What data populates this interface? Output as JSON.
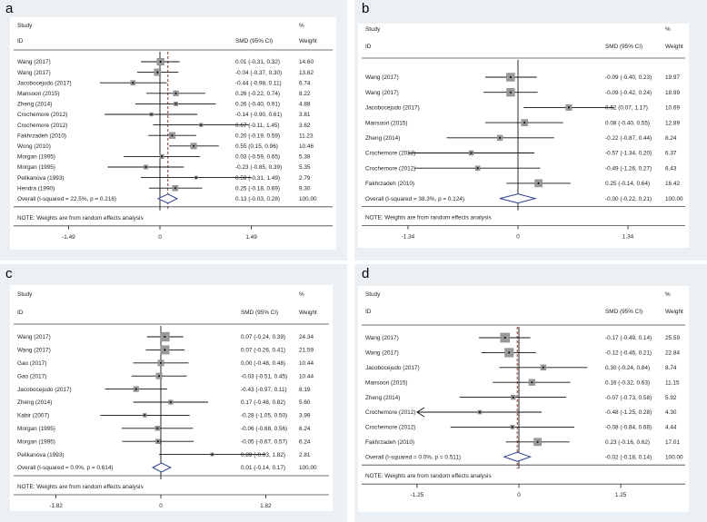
{
  "colors": {
    "frame": "#eaf0f4",
    "box": "#9a9a9a",
    "diamond": "#2a3f8f",
    "line": "#111111",
    "refline": "#8b1a1a"
  },
  "headers": {
    "study": "Study",
    "id": "ID",
    "smd": "SMD (95% CI)",
    "pct": "%",
    "weight": "Weight"
  },
  "note": "NOTE: Weights are from random effects analysis",
  "chart_data": [
    {
      "panel": "a",
      "type": "forest",
      "ticks": [
        -1.49,
        0,
        1.49
      ],
      "tick_labels": [
        "-1.49",
        "0",
        "1.49"
      ],
      "xlim": [
        -2.0,
        2.0
      ],
      "show_overall_dashed_line": true,
      "studies": [
        {
          "id": "Wang (2017)",
          "smd": 0.01,
          "lo": -0.31,
          "hi": 0.32,
          "ci": "0.01 (-0.31, 0.32)",
          "weight": "14.60"
        },
        {
          "id": "Wang (2017)",
          "smd": -0.04,
          "lo": -0.37,
          "hi": 0.3,
          "ci": "-0.04 (-0.37, 0.30)",
          "weight": "13.62"
        },
        {
          "id": "Jacobocejudo (2017)",
          "smd": -0.44,
          "lo": -0.98,
          "hi": 0.11,
          "ci": "-0.44 (-0.98, 0.11)",
          "weight": "6.74"
        },
        {
          "id": "Mansoori (2015)",
          "smd": 0.26,
          "lo": -0.22,
          "hi": 0.74,
          "ci": "0.26 (-0.22, 0.74)",
          "weight": "8.22"
        },
        {
          "id": "Zheng (2014)",
          "smd": 0.26,
          "lo": -0.4,
          "hi": 0.91,
          "ci": "0.26 (-0.40, 0.91)",
          "weight": "4.88"
        },
        {
          "id": "Crochemore (2012)",
          "smd": -0.14,
          "lo": -0.9,
          "hi": 0.61,
          "ci": "-0.14 (-0.90, 0.61)",
          "weight": "3.81"
        },
        {
          "id": "Crochemore (2012)",
          "smd": 0.67,
          "lo": -0.11,
          "hi": 1.45,
          "ci": "0.67 (-0.11, 1.45)",
          "weight": "3.62"
        },
        {
          "id": "Fakhrzadeh (2010)",
          "smd": 0.2,
          "lo": -0.19,
          "hi": 0.59,
          "ci": "0.20 (-0.19, 0.59)",
          "weight": "11.23"
        },
        {
          "id": "Wong (2010)",
          "smd": 0.55,
          "lo": 0.15,
          "hi": 0.96,
          "ci": "0.55 (0.15, 0.96)",
          "weight": "10.46"
        },
        {
          "id": "Morgan (1995)",
          "smd": 0.03,
          "lo": -0.59,
          "hi": 0.65,
          "ci": "0.03 (-0.59, 0.65)",
          "weight": "5.38"
        },
        {
          "id": "Morgan (1995)",
          "smd": -0.23,
          "lo": -0.85,
          "hi": 0.39,
          "ci": "-0.23 (-0.85, 0.39)",
          "weight": "5.35"
        },
        {
          "id": "Pelikanova (1993)",
          "smd": 0.59,
          "lo": -0.31,
          "hi": 1.49,
          "ci": "0.59 (-0.31, 1.49)",
          "weight": "2.79"
        },
        {
          "id": "Hendra (1990)",
          "smd": 0.25,
          "lo": -0.18,
          "hi": 0.69,
          "ci": "0.25 (-0.18, 0.69)",
          "weight": "9.30"
        }
      ],
      "overall": {
        "label": "Overall  (I-squared = 22.5%, p = 0.216)",
        "smd": 0.13,
        "lo": -0.03,
        "hi": 0.28,
        "ci": "0.13 (-0.03, 0.28)",
        "weight": "100.00"
      }
    },
    {
      "panel": "b",
      "type": "forest",
      "ticks": [
        -1.34,
        0,
        1.34
      ],
      "tick_labels": [
        "-1.34",
        "0",
        "1.34"
      ],
      "xlim": [
        -1.55,
        1.55
      ],
      "show_overall_dashed_line": false,
      "studies": [
        {
          "id": "Wang (2017)",
          "smd": -0.09,
          "lo": -0.4,
          "hi": 0.23,
          "ci": "-0.09 (-0.40, 0.23)",
          "weight": "19.97"
        },
        {
          "id": "Wang (2017)",
          "smd": -0.09,
          "lo": -0.42,
          "hi": 0.24,
          "ci": "-0.09 (-0.42, 0.24)",
          "weight": "18.99"
        },
        {
          "id": "Jacobocejudo (2017)",
          "smd": 0.62,
          "lo": 0.07,
          "hi": 1.17,
          "ci": "0.62 (0.07, 1.17)",
          "weight": "10.69"
        },
        {
          "id": "Mansoori (2015)",
          "smd": 0.08,
          "lo": -0.4,
          "hi": 0.55,
          "ci": "0.08 (-0.40, 0.55)",
          "weight": "12.89"
        },
        {
          "id": "Zheng (2014)",
          "smd": -0.22,
          "lo": -0.87,
          "hi": 0.44,
          "ci": "-0.22 (-0.87, 0.44)",
          "weight": "8.24"
        },
        {
          "id": "Crochemore (2012)",
          "smd": -0.57,
          "lo": -1.34,
          "hi": 0.2,
          "ci": "-0.57 (-1.34, 0.20)",
          "weight": "6.37"
        },
        {
          "id": "Crochemore (2012)",
          "smd": -0.49,
          "lo": -1.26,
          "hi": 0.27,
          "ci": "-0.49 (-1.26, 0.27)",
          "weight": "6.43"
        },
        {
          "id": "Fakhrzadeh (2010)",
          "smd": 0.25,
          "lo": -0.14,
          "hi": 0.64,
          "ci": "0.25 (-0.14, 0.64)",
          "weight": "16.42"
        }
      ],
      "overall": {
        "label": "Overall  (I-squared = 38.3%, p = 0.124)",
        "smd": -0.0,
        "lo": -0.22,
        "hi": 0.21,
        "ci": "-0.00 (-0.22, 0.21)",
        "weight": "100.00"
      }
    },
    {
      "panel": "c",
      "type": "forest",
      "ticks": [
        -1.82,
        0,
        1.82
      ],
      "tick_labels": [
        "-1.82",
        "0",
        "1.82"
      ],
      "xlim": [
        -2.35,
        2.35
      ],
      "show_overall_dashed_line": false,
      "studies": [
        {
          "id": "Wang (2017)",
          "smd": 0.07,
          "lo": -0.24,
          "hi": 0.39,
          "ci": "0.07 (-0.24, 0.39)",
          "weight": "24.34"
        },
        {
          "id": "Wang (2017)",
          "smd": 0.07,
          "lo": -0.26,
          "hi": 0.41,
          "ci": "0.07 (-0.26, 0.41)",
          "weight": "21.59"
        },
        {
          "id": "Gao (2017)",
          "smd": 0.0,
          "lo": -0.48,
          "hi": 0.48,
          "ci": "0.00 (-0.48, 0.48)",
          "weight": "10.44"
        },
        {
          "id": "Gao (2017)",
          "smd": -0.03,
          "lo": -0.51,
          "hi": 0.45,
          "ci": "-0.03 (-0.51, 0.45)",
          "weight": "10.44"
        },
        {
          "id": "Jacobocejudo (2017)",
          "smd": -0.43,
          "lo": -0.97,
          "hi": 0.11,
          "ci": "-0.43 (-0.97, 0.11)",
          "weight": "8.19"
        },
        {
          "id": "Zheng (2014)",
          "smd": 0.17,
          "lo": -0.48,
          "hi": 0.82,
          "ci": "0.17 (-0.48, 0.82)",
          "weight": "5.60"
        },
        {
          "id": "Kabir (2007)",
          "smd": -0.28,
          "lo": -1.05,
          "hi": 0.5,
          "ci": "-0.28 (-1.05, 0.50)",
          "weight": "3.99"
        },
        {
          "id": "Morgan (1995)",
          "smd": -0.06,
          "lo": -0.68,
          "hi": 0.56,
          "ci": "-0.06 (-0.68, 0.56)",
          "weight": "6.24"
        },
        {
          "id": "Morgan (1995)",
          "smd": -0.05,
          "lo": -0.67,
          "hi": 0.57,
          "ci": "-0.05 (-0.67, 0.57)",
          "weight": "6.24"
        },
        {
          "id": "Pelikanova (1993)",
          "smd": 0.89,
          "lo": -0.03,
          "hi": 1.82,
          "ci": "0.89 (-0.03, 1.82)",
          "weight": "2.81"
        }
      ],
      "overall": {
        "label": "Overall  (I-squared = 0.0%, p = 0.614)",
        "smd": 0.01,
        "lo": -0.14,
        "hi": 0.17,
        "ci": "0.01 (-0.14, 0.17)",
        "weight": "100.00"
      }
    },
    {
      "panel": "d",
      "type": "forest",
      "ticks": [
        -1.25,
        0,
        1.25
      ],
      "tick_labels": [
        "-1.25",
        "0",
        "1.25"
      ],
      "xlim": [
        -1.55,
        1.55
      ],
      "show_overall_dashed_line": true,
      "studies": [
        {
          "id": "Wang (2017)",
          "smd": -0.17,
          "lo": -0.49,
          "hi": 0.14,
          "ci": "-0.17 (-0.49, 0.14)",
          "weight": "25.59"
        },
        {
          "id": "Wang (2017)",
          "smd": -0.12,
          "lo": -0.46,
          "hi": 0.21,
          "ci": "-0.12 (-0.46, 0.21)",
          "weight": "22.84"
        },
        {
          "id": "Jacobocejudo (2017)",
          "smd": 0.3,
          "lo": -0.24,
          "hi": 0.84,
          "ci": "0.30 (-0.24, 0.84)",
          "weight": "8.74"
        },
        {
          "id": "Mansoori (2015)",
          "smd": 0.16,
          "lo": -0.32,
          "hi": 0.63,
          "ci": "0.16 (-0.32, 0.63)",
          "weight": "11.15"
        },
        {
          "id": "Zheng (2014)",
          "smd": -0.07,
          "lo": -0.73,
          "hi": 0.58,
          "ci": "-0.07 (-0.73, 0.58)",
          "weight": "5.92"
        },
        {
          "id": "Crochemore (2012)",
          "smd": -0.48,
          "lo": -1.25,
          "hi": 0.28,
          "ci": "-0.48 (-1.25, 0.28)",
          "weight": "4.30",
          "arrow_left": true
        },
        {
          "id": "Crochemore (2012)",
          "smd": -0.08,
          "lo": -0.84,
          "hi": 0.68,
          "ci": "-0.08 (-0.84, 0.68)",
          "weight": "4.44"
        },
        {
          "id": "Fakhrzadeh (2010)",
          "smd": 0.23,
          "lo": -0.16,
          "hi": 0.62,
          "ci": "0.23 (-0.16, 0.62)",
          "weight": "17.01"
        }
      ],
      "overall": {
        "label": "Overall  (I-squared = 0.0%, p = 0.511)",
        "smd": -0.02,
        "lo": -0.18,
        "hi": 0.14,
        "ci": "-0.02 (-0.18, 0.14)",
        "weight": "100.00"
      }
    }
  ]
}
